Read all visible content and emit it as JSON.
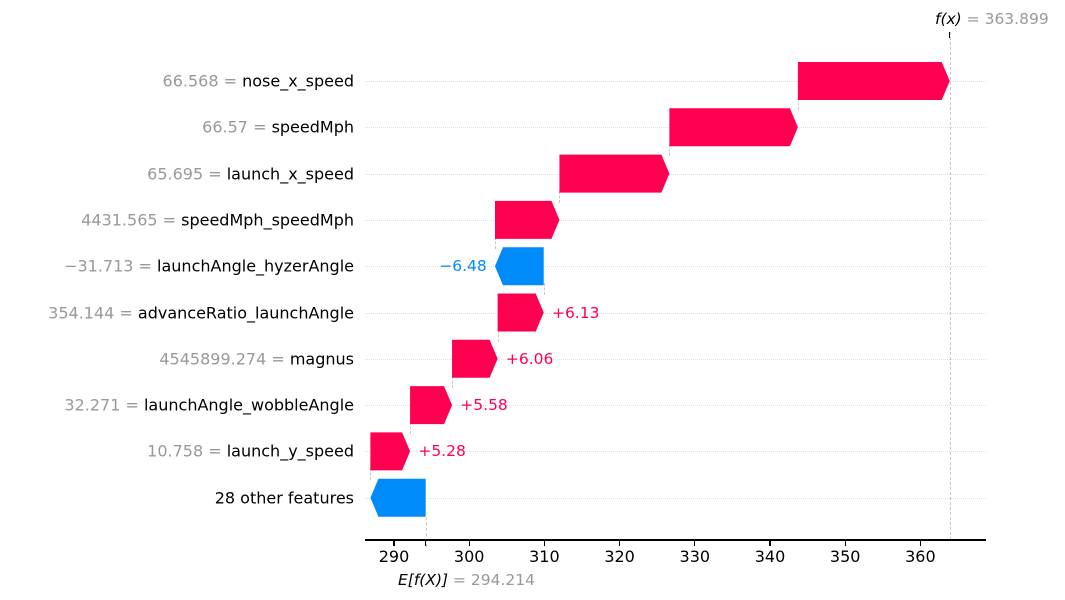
{
  "chart_data": {
    "type": "waterfall",
    "title": "",
    "xlabel": "",
    "ylabel": "",
    "xlim": [
      286.5,
      384.8
    ],
    "x_ticks": [
      290,
      300,
      310,
      320,
      330,
      340,
      350,
      360
    ],
    "base_value": 294.214,
    "base_value_label": "E[f(X)]",
    "base_value_text": "294.214",
    "output_value": 363.899,
    "output_value_label": "f(x)",
    "output_value_text": "363.899",
    "positive_color": "#ff0051",
    "negative_color": "#008bfb",
    "features": [
      {
        "value": "66.568",
        "name": "nose_x_speed",
        "shap": 20.19,
        "label": "+20.19",
        "start": 343.709,
        "end": 363.899
      },
      {
        "value": "66.57",
        "name": "speedMph",
        "shap": 17.09,
        "label": "+17.09",
        "start": 326.619,
        "end": 343.709
      },
      {
        "value": "65.695",
        "name": "launch_x_speed",
        "shap": 14.62,
        "label": "+14.62",
        "start": 311.999,
        "end": 326.619
      },
      {
        "value": "4431.565",
        "name": "speedMph_speedMph",
        "shap": 8.57,
        "label": "+8.57",
        "start": 303.429,
        "end": 311.999
      },
      {
        "value": "−31.713",
        "name": "launchAngle_hyzerAngle",
        "shap": -6.48,
        "label": "−6.48",
        "start": 309.909,
        "end": 303.429
      },
      {
        "value": "354.144",
        "name": "advanceRatio_launchAngle",
        "shap": 6.13,
        "label": "+6.13",
        "start": 303.779,
        "end": 309.909
      },
      {
        "value": "4545899.274",
        "name": "magnus",
        "shap": 6.06,
        "label": "+6.06",
        "start": 297.719,
        "end": 303.779
      },
      {
        "value": "32.271",
        "name": "launchAngle_wobbleAngle",
        "shap": 5.58,
        "label": "+5.58",
        "start": 292.139,
        "end": 297.719
      },
      {
        "value": "10.758",
        "name": "launch_y_speed",
        "shap": 5.28,
        "label": "+5.28",
        "start": 286.859,
        "end": 292.139
      },
      {
        "value": "",
        "name": "28 other features",
        "shap": -7.35,
        "label": "−7.35",
        "start": 294.214,
        "end": 286.864
      }
    ]
  },
  "labels": {
    "equals": " = "
  }
}
